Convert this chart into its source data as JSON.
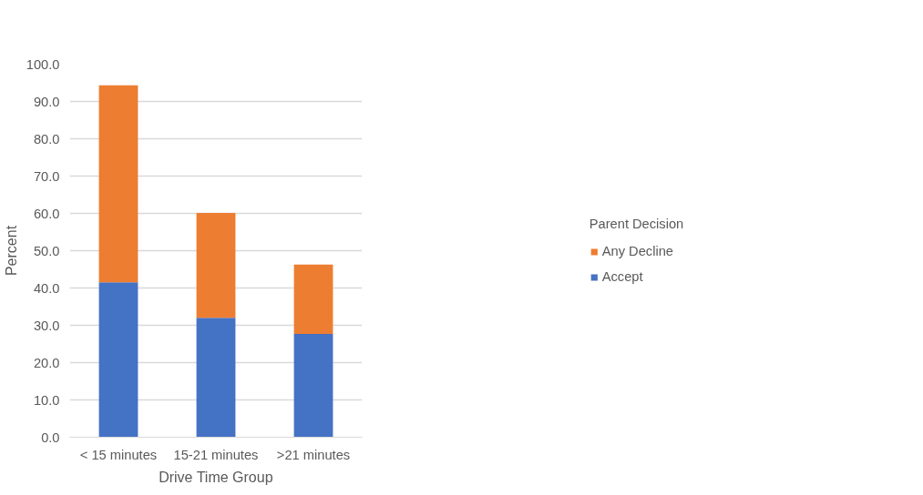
{
  "chart_data": {
    "type": "bar",
    "stacked": true,
    "xlabel": "Drive Time Group",
    "ylabel": "Percent",
    "legend_title": "Parent Decision",
    "legend": "right",
    "categories": [
      "< 15 minutes",
      "15-21 minutes",
      ">21 minutes"
    ],
    "series": [
      {
        "name": "Accept",
        "color": "#4472c4",
        "values": [
          41.5,
          32.0,
          27.7
        ]
      },
      {
        "name": "Any Decline",
        "color": "#ed7d31",
        "values": [
          52.8,
          28.1,
          18.6
        ]
      }
    ],
    "ylim": [
      0,
      100
    ],
    "yticks": [
      {
        "value": 0,
        "label": "0.0"
      },
      {
        "value": 10,
        "label": "10.0"
      },
      {
        "value": 20,
        "label": "20.0"
      },
      {
        "value": 30,
        "label": "30.0"
      },
      {
        "value": 40,
        "label": "40.0"
      },
      {
        "value": 50,
        "label": "50.0"
      },
      {
        "value": 60,
        "label": "60.0"
      },
      {
        "value": 70,
        "label": "70.0"
      },
      {
        "value": 80,
        "label": "80.0"
      },
      {
        "value": 90,
        "label": "90.0"
      },
      {
        "value": 100,
        "label": "100.0"
      }
    ],
    "grid": "y"
  }
}
